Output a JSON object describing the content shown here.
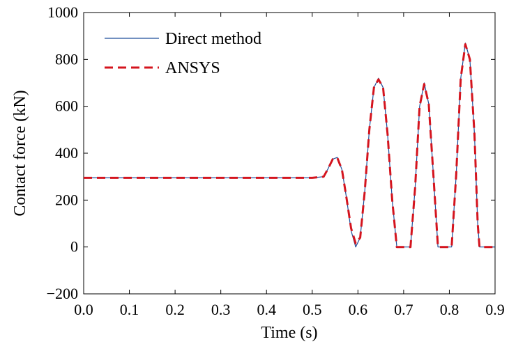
{
  "chart_data": {
    "type": "line",
    "xlabel": "Time (s)",
    "ylabel": "Contact force (kN)",
    "xlim": [
      0.0,
      0.9
    ],
    "ylim": [
      -200,
      1000
    ],
    "xticks": [
      0.0,
      0.1,
      0.2,
      0.3,
      0.4,
      0.5,
      0.6,
      0.7,
      0.8,
      0.9
    ],
    "xtick_labels": [
      "0.0",
      "0.1",
      "0.2",
      "0.3",
      "0.4",
      "0.5",
      "0.6",
      "0.7",
      "0.8",
      "0.9"
    ],
    "yticks": [
      -200,
      0,
      200,
      400,
      600,
      800,
      1000
    ],
    "ytick_labels": [
      "−200",
      "0",
      "200",
      "400",
      "600",
      "800",
      "1000"
    ],
    "grid": false,
    "legend_position": "top-left",
    "series": [
      {
        "name": "Direct method",
        "color": "#1f4e9a",
        "style": "solid",
        "x": [
          0.0,
          0.1,
          0.2,
          0.3,
          0.4,
          0.5,
          0.525,
          0.535,
          0.545,
          0.555,
          0.565,
          0.575,
          0.585,
          0.595,
          0.605,
          0.615,
          0.625,
          0.635,
          0.645,
          0.655,
          0.665,
          0.675,
          0.685,
          0.7,
          0.715,
          0.725,
          0.735,
          0.745,
          0.755,
          0.765,
          0.775,
          0.79,
          0.805,
          0.815,
          0.825,
          0.835,
          0.845,
          0.855,
          0.862,
          0.866,
          0.87,
          0.9
        ],
        "y": [
          295,
          295,
          295,
          295,
          295,
          295,
          300,
          335,
          375,
          382,
          330,
          210,
          70,
          0,
          40,
          240,
          500,
          680,
          720,
          680,
          480,
          200,
          0,
          0,
          0,
          250,
          600,
          700,
          610,
          310,
          0,
          0,
          0,
          310,
          720,
          870,
          800,
          480,
          100,
          0,
          0,
          0
        ]
      },
      {
        "name": "ANSYS",
        "color": "#d4141e",
        "style": "dashed",
        "x": [
          0.0,
          0.1,
          0.2,
          0.3,
          0.4,
          0.5,
          0.525,
          0.535,
          0.545,
          0.555,
          0.565,
          0.575,
          0.585,
          0.595,
          0.605,
          0.615,
          0.625,
          0.635,
          0.645,
          0.655,
          0.665,
          0.675,
          0.685,
          0.7,
          0.715,
          0.725,
          0.735,
          0.745,
          0.755,
          0.765,
          0.775,
          0.79,
          0.805,
          0.815,
          0.825,
          0.835,
          0.845,
          0.855,
          0.862,
          0.866,
          0.87,
          0.9
        ],
        "y": [
          295,
          295,
          295,
          295,
          295,
          295,
          300,
          335,
          375,
          380,
          330,
          210,
          80,
          15,
          40,
          240,
          500,
          680,
          715,
          680,
          480,
          200,
          0,
          0,
          0,
          250,
          600,
          695,
          610,
          310,
          0,
          0,
          0,
          310,
          720,
          865,
          800,
          480,
          100,
          0,
          0,
          0
        ]
      }
    ]
  }
}
